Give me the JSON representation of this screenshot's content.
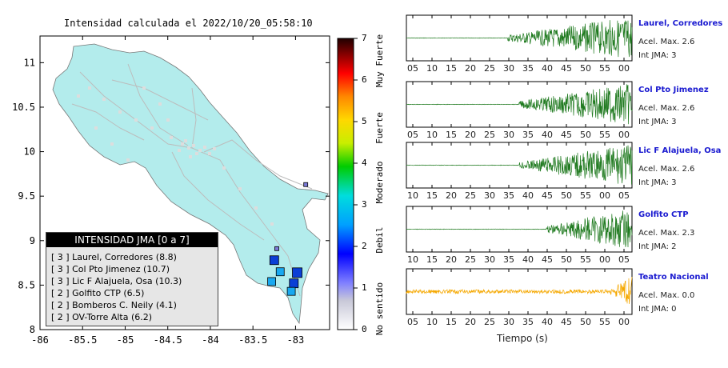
{
  "map": {
    "title": "Intensidad calculada el 2022/10/20_05:58:10",
    "lon_ticks": [
      "-86",
      "-85.5",
      "-85",
      "-84.5",
      "-84",
      "-83.5",
      "-83"
    ],
    "lat_ticks": [
      "11",
      "10.5",
      "10",
      "9.5",
      "9",
      "8.5",
      "8"
    ],
    "land_color": "#b3ecec",
    "legend": {
      "title": "INTENSIDAD JMA [0 a 7]",
      "items": [
        {
          "label": "[ 3 ]  Laurel, Corredores (8.8)"
        },
        {
          "label": "[ 3 ]  Col Pto Jimenez (10.7)"
        },
        {
          "label": "[ 3 ]  Lic F Alajuela, Osa (10.3)"
        },
        {
          "label": "[ 2 ]  Golfito CTP (6.5)"
        },
        {
          "label": "[ 2 ]  Bomberos C. Neily (4.1)"
        },
        {
          "label": "[ 2 ]  OV-Torre Alta (6.2)"
        }
      ]
    },
    "colorbar": {
      "ticks": [
        "0",
        "1",
        "2",
        "3",
        "4",
        "5",
        "6",
        "7"
      ],
      "categories": [
        "No sentido",
        "Debil",
        "Moderado",
        "Fuerte",
        "Muy Fuerte"
      ]
    }
  },
  "waveforms": {
    "xlabel": "Tiempo (s)",
    "stations": [
      {
        "name": "Laurel, Corredores",
        "accel_label": "Acel. Max. 2.6",
        "int_label": "Int JMA: 3",
        "color": "#1f7a1f",
        "ticks": [
          "05",
          "10",
          "15",
          "20",
          "25",
          "30",
          "35",
          "40",
          "45",
          "50",
          "55",
          "00"
        ]
      },
      {
        "name": "Col Pto Jimenez",
        "accel_label": "Acel. Max. 2.6",
        "int_label": "Int JMA: 3",
        "color": "#1f7a1f",
        "ticks": [
          "05",
          "10",
          "15",
          "20",
          "25",
          "30",
          "35",
          "40",
          "45",
          "50",
          "55",
          "00"
        ]
      },
      {
        "name": "Lic F Alajuela, Osa",
        "accel_label": "Acel. Max. 2.6",
        "int_label": "Int JMA: 3",
        "color": "#1f7a1f",
        "ticks": [
          "10",
          "15",
          "20",
          "25",
          "30",
          "35",
          "40",
          "45",
          "50",
          "55",
          "00",
          "05"
        ]
      },
      {
        "name": "Golfito CTP",
        "accel_label": "Acel. Max. 2.3",
        "int_label": "Int JMA: 2",
        "color": "#1f7a1f",
        "ticks": [
          "10",
          "15",
          "20",
          "25",
          "30",
          "35",
          "40",
          "45",
          "50",
          "55",
          "00",
          "05"
        ]
      },
      {
        "name": "Teatro Nacional",
        "accel_label": "Acel. Max. 0.0",
        "int_label": "Int JMA: 0",
        "color": "#f5a800",
        "ticks": [
          "05",
          "10",
          "15",
          "20",
          "25",
          "30",
          "35",
          "40",
          "45",
          "50",
          "55",
          "00"
        ]
      }
    ]
  },
  "chart_data": {
    "type": "scatter",
    "x": [
      -82.98,
      -83.25,
      -83.02,
      -83.18,
      -83.28,
      -83.05,
      -83.22,
      -82.88
    ],
    "y": [
      8.64,
      8.78,
      8.52,
      8.65,
      8.54,
      8.43,
      8.91,
      9.63
    ],
    "xlim": [
      -86,
      -82.6
    ],
    "ylim": [
      8,
      11.3
    ]
  }
}
